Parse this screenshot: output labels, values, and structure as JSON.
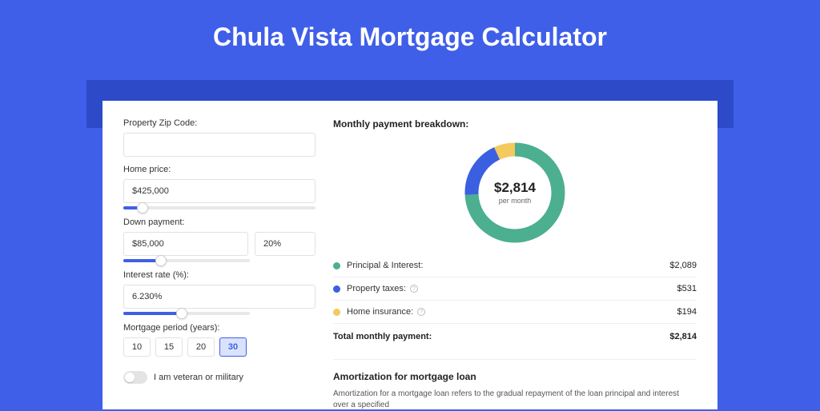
{
  "page": {
    "title": "Chula Vista Mortgage Calculator",
    "bg_color": "#3f5fe8",
    "shadow_color": "#2d4ac9"
  },
  "form": {
    "zip": {
      "label": "Property Zip Code:",
      "value": ""
    },
    "home_price": {
      "label": "Home price:",
      "value": "$425,000",
      "slider_pct": 10
    },
    "down_payment": {
      "label": "Down payment:",
      "value": "$85,000",
      "pct_value": "20%",
      "slider_pct": 30
    },
    "interest_rate": {
      "label": "Interest rate (%):",
      "value": "6.230%",
      "slider_pct": 46
    },
    "period": {
      "label": "Mortgage period (years):",
      "options": [
        "10",
        "15",
        "20",
        "30"
      ],
      "selected": "30"
    },
    "veteran": {
      "label": "I am veteran or military",
      "checked": false
    }
  },
  "breakdown": {
    "title": "Monthly payment breakdown:",
    "center_amount": "$2,814",
    "center_sub": "per month",
    "donut": {
      "circumference": 339.29,
      "segments": [
        {
          "name": "principal_interest",
          "color": "#4caf8f",
          "fraction": 0.742
        },
        {
          "name": "property_taxes",
          "color": "#3a5fe0",
          "fraction": 0.189
        },
        {
          "name": "home_insurance",
          "color": "#f4c95d",
          "fraction": 0.069
        }
      ]
    },
    "items": [
      {
        "label": "Principal & Interest:",
        "value": "$2,089",
        "color": "#4caf8f",
        "info": false
      },
      {
        "label": "Property taxes:",
        "value": "$531",
        "color": "#3a5fe0",
        "info": true
      },
      {
        "label": "Home insurance:",
        "value": "$194",
        "color": "#f4c95d",
        "info": true
      }
    ],
    "total": {
      "label": "Total monthly payment:",
      "value": "$2,814"
    }
  },
  "amortization": {
    "title": "Amortization for mortgage loan",
    "text": "Amortization for a mortgage loan refers to the gradual repayment of the loan principal and interest over a specified"
  }
}
